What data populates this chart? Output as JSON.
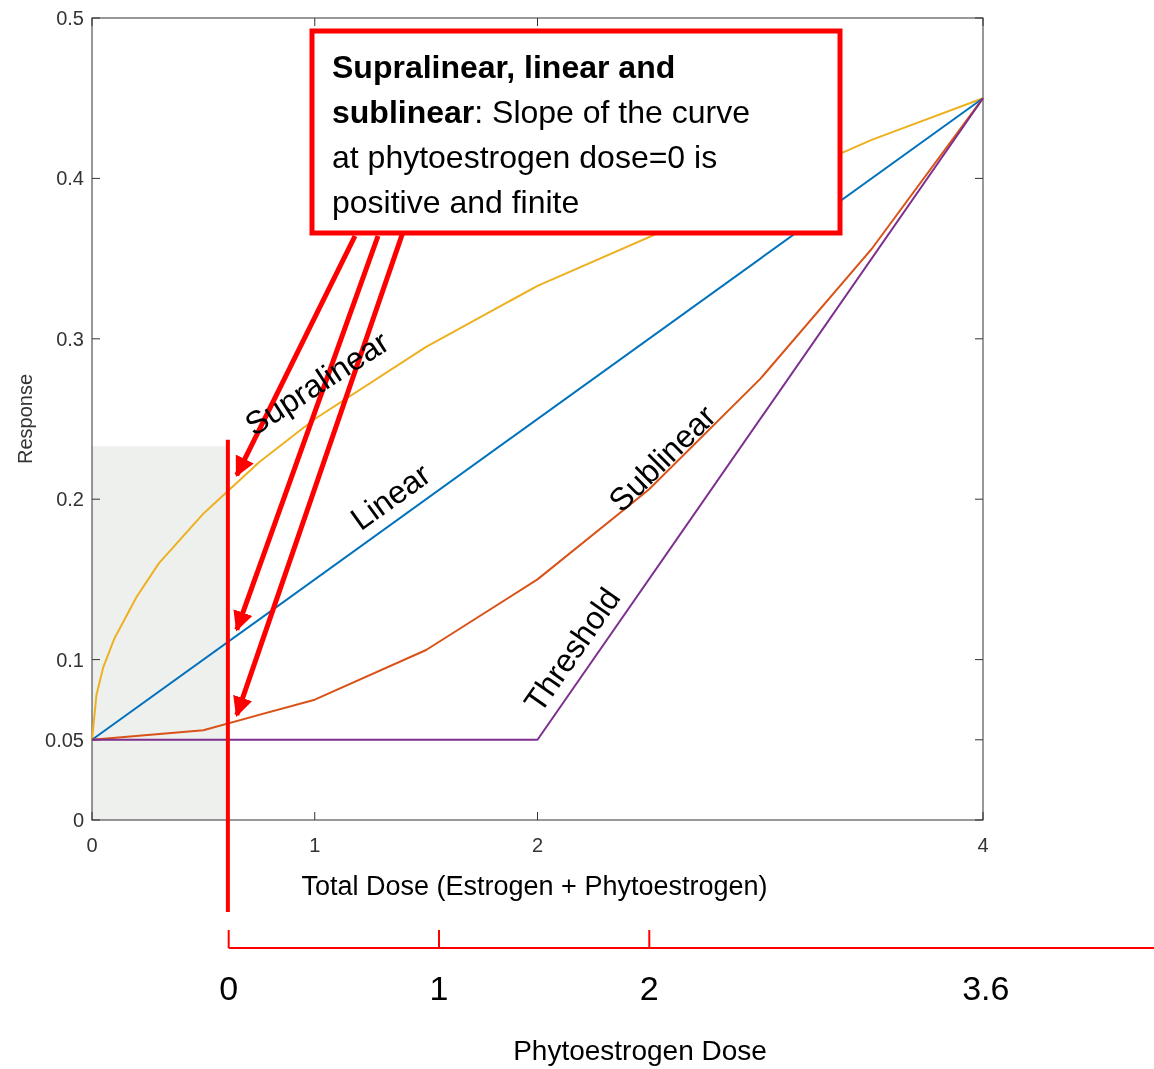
{
  "chart_data": {
    "type": "line",
    "xlabel": "Total Dose (Estrogen + Phytoestrogen)",
    "ylabel": "Response",
    "x2label": "Phytoestrogen Dose",
    "xlim": [
      0,
      4
    ],
    "xticks": [
      0,
      1,
      2,
      4
    ],
    "ylim": [
      0,
      0.5
    ],
    "yticks": [
      0,
      0.05,
      0.1,
      0.2,
      0.3,
      0.4,
      0.5
    ],
    "x2lim": [
      -0.65,
      4.4
    ],
    "x2ticks": [
      0,
      1,
      2,
      3.6
    ],
    "grid": false,
    "series": [
      {
        "name": "Supralinear",
        "color": "#edb120",
        "x": [
          0,
          0.02,
          0.05,
          0.1,
          0.2,
          0.3,
          0.5,
          0.75,
          1,
          1.5,
          2,
          3.5,
          4
        ],
        "values": [
          0.05,
          0.078,
          0.095,
          0.113,
          0.139,
          0.16,
          0.191,
          0.223,
          0.25,
          0.295,
          0.333,
          0.424,
          0.45
        ]
      },
      {
        "name": "Linear",
        "color": "#0072bd",
        "x": [
          0,
          4
        ],
        "values": [
          0.05,
          0.45
        ]
      },
      {
        "name": "Sublinear",
        "color": "#d95319",
        "x": [
          0,
          0.5,
          1,
          1.5,
          2,
          2.5,
          3,
          3.5,
          4
        ],
        "values": [
          0.05,
          0.056,
          0.075,
          0.106,
          0.15,
          0.206,
          0.275,
          0.356,
          0.45
        ]
      },
      {
        "name": "Threshold",
        "color": "#7e2f8e",
        "x": [
          0,
          2,
          4
        ],
        "values": [
          0.05,
          0.05,
          0.45
        ]
      }
    ],
    "ref_lines": [
      {
        "axis": "x",
        "value": 0.61,
        "color": "#ff0000"
      }
    ],
    "bands": [
      {
        "axis": "x",
        "from": 0,
        "to": 0.6,
        "color": "#eef0ee"
      }
    ],
    "annotations": [
      {
        "text": "Supralinear, linear and sublinear: Slope of the curve at phytoestrogen dose=0 is positive and finite",
        "x": 0.65,
        "y": 0.215
      }
    ]
  }
}
